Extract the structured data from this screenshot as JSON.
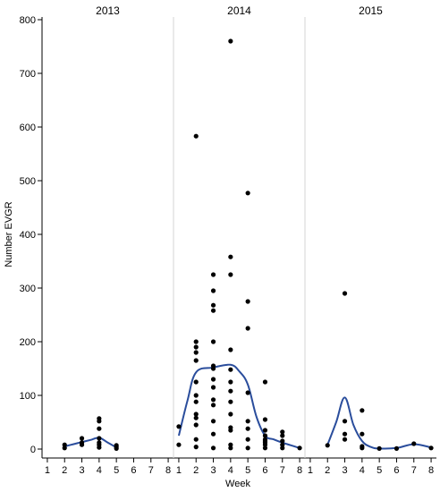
{
  "chart_data": {
    "type": "scatter",
    "title": "",
    "xlabel": "Week",
    "ylabel": "Number EVGR",
    "ylim": [
      0,
      800
    ],
    "y_ticks": [
      0,
      100,
      200,
      300,
      400,
      500,
      600,
      700,
      800
    ],
    "x_ticks": [
      1,
      2,
      3,
      4,
      5,
      6,
      7,
      8
    ],
    "xlim": [
      0.9,
      8.1
    ],
    "grid": false,
    "point_color": "#000000",
    "smooth_color": "#2a4d9c",
    "panel_divider_color": "#d4d4d4",
    "axis_color": "#000000",
    "panels": [
      {
        "title": "2013",
        "points": [
          [
            2,
            2
          ],
          [
            2,
            8
          ],
          [
            3,
            8
          ],
          [
            3,
            12
          ],
          [
            3,
            20
          ],
          [
            4,
            3
          ],
          [
            4,
            8
          ],
          [
            4,
            12
          ],
          [
            4,
            20
          ],
          [
            4,
            38
          ],
          [
            4,
            52
          ],
          [
            4,
            57
          ],
          [
            5,
            1
          ],
          [
            5,
            4
          ],
          [
            5,
            7
          ]
        ],
        "smooth": [
          [
            2,
            5
          ],
          [
            2.5,
            9
          ],
          [
            3,
            13
          ],
          [
            3.5,
            17
          ],
          [
            4,
            21
          ],
          [
            4.5,
            12
          ],
          [
            5,
            3
          ]
        ]
      },
      {
        "title": "2014",
        "points": [
          [
            1,
            8
          ],
          [
            1,
            42
          ],
          [
            2,
            4
          ],
          [
            2,
            18
          ],
          [
            2,
            45
          ],
          [
            2,
            58
          ],
          [
            2,
            65
          ],
          [
            2,
            88
          ],
          [
            2,
            100
          ],
          [
            2,
            125
          ],
          [
            2,
            165
          ],
          [
            2,
            180
          ],
          [
            2,
            190
          ],
          [
            2,
            200
          ],
          [
            2,
            583
          ],
          [
            3,
            2
          ],
          [
            3,
            28
          ],
          [
            3,
            52
          ],
          [
            3,
            82
          ],
          [
            3,
            92
          ],
          [
            3,
            115
          ],
          [
            3,
            130
          ],
          [
            3,
            150
          ],
          [
            3,
            155
          ],
          [
            3,
            200
          ],
          [
            3,
            258
          ],
          [
            3,
            268
          ],
          [
            3,
            295
          ],
          [
            3,
            325
          ],
          [
            4,
            2
          ],
          [
            4,
            8
          ],
          [
            4,
            35
          ],
          [
            4,
            40
          ],
          [
            4,
            65
          ],
          [
            4,
            88
          ],
          [
            4,
            108
          ],
          [
            4,
            125
          ],
          [
            4,
            148
          ],
          [
            4,
            185
          ],
          [
            4,
            325
          ],
          [
            4,
            358
          ],
          [
            4,
            760
          ],
          [
            5,
            2
          ],
          [
            5,
            18
          ],
          [
            5,
            38
          ],
          [
            5,
            52
          ],
          [
            5,
            105
          ],
          [
            5,
            225
          ],
          [
            5,
            275
          ],
          [
            5,
            477
          ],
          [
            6,
            2
          ],
          [
            6,
            8
          ],
          [
            6,
            12
          ],
          [
            6,
            15
          ],
          [
            6,
            18
          ],
          [
            6,
            25
          ],
          [
            6,
            35
          ],
          [
            6,
            55
          ],
          [
            6,
            125
          ],
          [
            7,
            2
          ],
          [
            7,
            8
          ],
          [
            7,
            15
          ],
          [
            7,
            25
          ],
          [
            7,
            32
          ],
          [
            8,
            2
          ]
        ],
        "smooth": [
          [
            1,
            25
          ],
          [
            1.5,
            90
          ],
          [
            2,
            143
          ],
          [
            3,
            152
          ],
          [
            4,
            157
          ],
          [
            4.5,
            145
          ],
          [
            5,
            120
          ],
          [
            5.5,
            60
          ],
          [
            6,
            25
          ],
          [
            6.5,
            18
          ],
          [
            7,
            12
          ],
          [
            8,
            2
          ]
        ]
      },
      {
        "title": "2015",
        "points": [
          [
            2,
            7
          ],
          [
            3,
            18
          ],
          [
            3,
            28
          ],
          [
            3,
            52
          ],
          [
            3,
            290
          ],
          [
            4,
            2
          ],
          [
            4,
            5
          ],
          [
            4,
            28
          ],
          [
            4,
            72
          ],
          [
            5,
            1
          ],
          [
            6,
            1
          ],
          [
            7,
            10
          ],
          [
            8,
            2
          ]
        ],
        "smooth": [
          [
            2,
            8
          ],
          [
            2.5,
            50
          ],
          [
            3,
            96
          ],
          [
            3.5,
            45
          ],
          [
            4,
            15
          ],
          [
            4.5,
            4
          ],
          [
            5,
            1
          ],
          [
            6,
            2
          ],
          [
            7,
            9
          ],
          [
            8,
            3
          ]
        ]
      }
    ]
  }
}
